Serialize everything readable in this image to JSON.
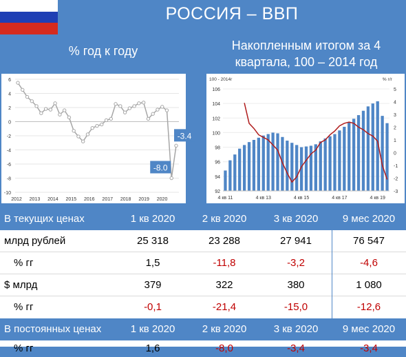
{
  "header": {
    "title": "РОССИЯ – ВВП",
    "subtitle_left": "% год к году",
    "subtitle_right_line1": "Накопленным итогом за 4",
    "subtitle_right_line2": "квартала, 100 – 2014 год"
  },
  "colors": {
    "accent": "#4f86c6",
    "negative": "#c00000",
    "line": "#a6a6a6",
    "bar": "#4f86c6",
    "red_line": "#b01c1c"
  },
  "chart_data": [
    {
      "type": "line",
      "title": "% год к году",
      "x_ticks": [
        "2012",
        "2013",
        "2014",
        "2015",
        "2016",
        "2017",
        "2018",
        "2019",
        "2020"
      ],
      "y_ticks": [
        "6",
        "4",
        "2",
        "0",
        "-2",
        "-4",
        "-6",
        "-8",
        "-10"
      ],
      "ylim": [
        -10,
        6
      ],
      "values": [
        5.5,
        4.5,
        3.5,
        2.9,
        2.2,
        1.2,
        1.8,
        1.7,
        2.6,
        1.0,
        1.6,
        0.6,
        -1.3,
        -2.1,
        -2.8,
        -1.8,
        -0.9,
        -0.6,
        -0.4,
        0.2,
        0.4,
        2.5,
        2.2,
        1.3,
        1.9,
        2.2,
        2.6,
        2.7,
        0.4,
        1.1,
        1.7,
        2.1,
        1.6,
        -8.0,
        -3.4
      ],
      "annotations": [
        "-8.0",
        "-3.4"
      ]
    },
    {
      "type": "bar",
      "title": "Накопленным итогом за 4 квартала, 100 – 2014 год",
      "left_axis_label": "100 - 2014г",
      "right_axis_label": "% г/г",
      "x_ticks": [
        "4 кв 11",
        "4 кв 13",
        "4 кв 15",
        "4 кв 17",
        "4 кв 19"
      ],
      "y_left_ticks": [
        "106",
        "104",
        "102",
        "100",
        "98",
        "96",
        "94",
        "92"
      ],
      "y_right_ticks": [
        "5",
        "4",
        "3",
        "2",
        "1",
        "0",
        "-1",
        "-2",
        "-3"
      ],
      "ylim_left": [
        92,
        106
      ],
      "ylim_right": [
        -3,
        5
      ],
      "bars": [
        94.8,
        96.2,
        97.0,
        97.8,
        98.3,
        98.7,
        99.0,
        99.3,
        99.6,
        99.8,
        100.0,
        99.9,
        99.4,
        98.9,
        98.6,
        98.3,
        98.0,
        98.1,
        98.2,
        98.4,
        98.8,
        99.2,
        99.5,
        99.8,
        100.3,
        100.8,
        101.4,
        101.9,
        102.4,
        103.0,
        103.6,
        104.0,
        104.3,
        102.3,
        101.3
      ],
      "line": [
        null,
        null,
        null,
        null,
        3.9,
        2.3,
        1.9,
        1.4,
        1.2,
        1.0,
        0.6,
        0.2,
        -0.8,
        -1.6,
        -2.3,
        -1.9,
        -1.1,
        -0.6,
        -0.1,
        0.2,
        0.8,
        1.0,
        1.4,
        1.7,
        2.1,
        2.3,
        2.4,
        2.3,
        2.0,
        1.8,
        1.5,
        1.3,
        0.9,
        -1.0,
        -2.1
      ]
    }
  ],
  "table": {
    "head1": {
      "c0": "В текущих ценах",
      "c1": "1 кв 2020",
      "c2": "2 кв 2020",
      "c3": "3 кв 2020",
      "c4": "9 мес 2020"
    },
    "r1": {
      "c0": "млрд рублей",
      "c1": "25 318",
      "c2": "23 288",
      "c3": "27 941",
      "c4": "76 547"
    },
    "r2": {
      "c0": "% гг",
      "c1": "1,5",
      "c2": "-11,8",
      "c3": "-3,2",
      "c4": "-4,6"
    },
    "r3": {
      "c0": "$ млрд",
      "c1": "379",
      "c2": "322",
      "c3": "380",
      "c4": "1 080"
    },
    "r4": {
      "c0": "% гг",
      "c1": "-0,1",
      "c2": "-21,4",
      "c3": "-15,0",
      "c4": "-12,6"
    },
    "head2": {
      "c0": "В постоянных ценах",
      "c1": "1 кв 2020",
      "c2": "2 кв 2020",
      "c3": "3 кв 2020",
      "c4": "9 мес 2020"
    },
    "r5": {
      "c0": "% гг",
      "c1": "1,6",
      "c2": "-8,0",
      "c3": "-3,4",
      "c4": "-3,4"
    }
  }
}
